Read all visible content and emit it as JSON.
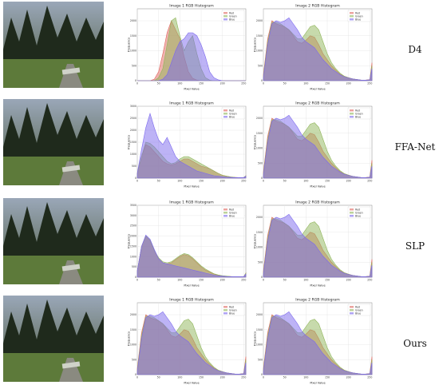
{
  "rows": [
    {
      "method": "D4"
    },
    {
      "method": "FFA-Net"
    },
    {
      "method": "SLP"
    },
    {
      "method": "Ours"
    }
  ],
  "colors": {
    "red": "#e0665f",
    "green": "#8fb55a",
    "blue": "#7b68ee"
  },
  "chart_data": [
    {
      "type": "area",
      "title": "Image 1 RGB Histogram",
      "xlabel": "Pixel Value",
      "ylabel": "Frequency",
      "xlim": [
        0,
        255
      ],
      "ylim": [
        0,
        2400
      ],
      "grid": true,
      "legend": "top-right",
      "x": [
        0,
        10,
        20,
        30,
        40,
        50,
        60,
        70,
        80,
        90,
        100,
        110,
        120,
        130,
        140,
        150,
        160,
        170,
        180,
        190,
        200,
        210,
        220,
        230,
        240,
        250,
        255
      ],
      "series": [
        {
          "name": "Red",
          "values": [
            0,
            0,
            0,
            0,
            50,
            300,
            900,
            1600,
            2000,
            1700,
            1400,
            800,
            300,
            80,
            20,
            0,
            0,
            0,
            0,
            0,
            0,
            0,
            0,
            0,
            0,
            0,
            0
          ]
        },
        {
          "name": "Green",
          "values": [
            0,
            0,
            0,
            0,
            0,
            100,
            400,
            1200,
            2000,
            2100,
            1500,
            1000,
            1300,
            1500,
            900,
            400,
            100,
            20,
            0,
            0,
            0,
            0,
            0,
            0,
            0,
            0,
            0
          ]
        },
        {
          "name": "Blue",
          "values": [
            0,
            0,
            0,
            0,
            0,
            0,
            50,
            200,
            600,
            1000,
            1300,
            1400,
            1600,
            1600,
            1500,
            1200,
            800,
            300,
            100,
            30,
            0,
            0,
            0,
            0,
            0,
            0,
            0
          ]
        }
      ]
    },
    {
      "type": "area",
      "title": "Image 2 RGB Histogram",
      "xlabel": "Pixel Value",
      "ylabel": "Frequency",
      "xlim": [
        0,
        255
      ],
      "ylim": [
        0,
        2400
      ],
      "grid": true,
      "legend": "top-right",
      "x": [
        0,
        10,
        20,
        30,
        40,
        50,
        60,
        70,
        80,
        90,
        100,
        110,
        120,
        130,
        140,
        150,
        160,
        170,
        180,
        190,
        200,
        210,
        220,
        230,
        240,
        250,
        255
      ],
      "series": [
        {
          "name": "Red",
          "values": [
            200,
            1400,
            2000,
            1900,
            1850,
            1800,
            1700,
            1500,
            1300,
            1250,
            1350,
            1500,
            1450,
            1200,
            900,
            700,
            500,
            350,
            220,
            150,
            100,
            60,
            40,
            20,
            20,
            40,
            600
          ]
        },
        {
          "name": "Green",
          "values": [
            150,
            1300,
            1950,
            1950,
            1900,
            1800,
            1700,
            1550,
            1400,
            1400,
            1600,
            1800,
            1850,
            1700,
            1300,
            900,
            600,
            400,
            250,
            150,
            100,
            60,
            40,
            20,
            20,
            30,
            500
          ]
        },
        {
          "name": "Blue",
          "values": [
            100,
            1200,
            1900,
            2000,
            1950,
            2000,
            2100,
            1900,
            1700,
            1450,
            1300,
            1200,
            1100,
            900,
            700,
            550,
            400,
            300,
            200,
            130,
            90,
            60,
            40,
            20,
            20,
            30,
            400
          ]
        }
      ]
    },
    {
      "type": "area",
      "title": "Image 1 RGB Histogram",
      "xlabel": "Pixel Value",
      "ylabel": "Frequency",
      "xlim": [
        0,
        255
      ],
      "ylim": [
        0,
        3000
      ],
      "grid": true,
      "legend": "top-right",
      "x": [
        0,
        10,
        20,
        30,
        40,
        50,
        60,
        70,
        80,
        90,
        100,
        110,
        120,
        130,
        140,
        150,
        160,
        170,
        180,
        190,
        200,
        210,
        220,
        230,
        240,
        250,
        255
      ],
      "series": [
        {
          "name": "Red",
          "values": [
            200,
            900,
            1400,
            1300,
            1100,
            900,
            700,
            600,
            550,
            600,
            700,
            800,
            800,
            700,
            600,
            500,
            450,
            400,
            300,
            200,
            120,
            80,
            50,
            30,
            20,
            20,
            100
          ]
        },
        {
          "name": "Green",
          "values": [
            200,
            900,
            1500,
            1450,
            1300,
            1100,
            900,
            700,
            600,
            650,
            800,
            900,
            900,
            800,
            700,
            600,
            500,
            400,
            300,
            200,
            120,
            80,
            50,
            30,
            20,
            20,
            100
          ]
        },
        {
          "name": "Blue",
          "values": [
            200,
            1200,
            2100,
            2700,
            2100,
            1600,
            1400,
            1700,
            1300,
            900,
            700,
            600,
            500,
            400,
            300,
            250,
            200,
            150,
            100,
            80,
            60,
            40,
            30,
            20,
            20,
            20,
            80
          ]
        }
      ]
    },
    {
      "type": "area",
      "title": "Image 2 RGB Histogram",
      "xlabel": "Pixel Value",
      "ylabel": "Frequency",
      "xlim": [
        0,
        255
      ],
      "ylim": [
        0,
        2400
      ],
      "grid": true,
      "legend": "top-right",
      "x": [
        0,
        10,
        20,
        30,
        40,
        50,
        60,
        70,
        80,
        90,
        100,
        110,
        120,
        130,
        140,
        150,
        160,
        170,
        180,
        190,
        200,
        210,
        220,
        230,
        240,
        250,
        255
      ],
      "series": [
        {
          "name": "Red",
          "values": [
            200,
            1400,
            2000,
            1900,
            1850,
            1800,
            1700,
            1500,
            1300,
            1250,
            1350,
            1500,
            1450,
            1200,
            900,
            700,
            500,
            350,
            220,
            150,
            100,
            60,
            40,
            20,
            20,
            40,
            600
          ]
        },
        {
          "name": "Green",
          "values": [
            150,
            1300,
            1950,
            1950,
            1900,
            1800,
            1700,
            1550,
            1400,
            1400,
            1600,
            1800,
            1850,
            1700,
            1300,
            900,
            600,
            400,
            250,
            150,
            100,
            60,
            40,
            20,
            20,
            30,
            500
          ]
        },
        {
          "name": "Blue",
          "values": [
            100,
            1200,
            1900,
            2000,
            1950,
            2000,
            2100,
            1900,
            1700,
            1450,
            1300,
            1200,
            1100,
            900,
            700,
            550,
            400,
            300,
            200,
            130,
            90,
            60,
            40,
            20,
            20,
            30,
            400
          ]
        }
      ]
    },
    {
      "type": "area",
      "title": "Image 1 RGB Histogram",
      "xlabel": "Pixel Value",
      "ylabel": "Frequency",
      "xlim": [
        0,
        255
      ],
      "ylim": [
        0,
        3500
      ],
      "grid": true,
      "legend": "top-right",
      "x": [
        0,
        10,
        20,
        30,
        40,
        50,
        60,
        70,
        80,
        90,
        100,
        110,
        120,
        130,
        140,
        150,
        160,
        170,
        180,
        190,
        200,
        210,
        220,
        230,
        240,
        250,
        255
      ],
      "series": [
        {
          "name": "Red",
          "values": [
            300,
            1500,
            2000,
            1800,
            1300,
            900,
            700,
            650,
            700,
            850,
            1000,
            1100,
            1050,
            900,
            700,
            500,
            350,
            250,
            150,
            100,
            60,
            40,
            30,
            20,
            20,
            20,
            200
          ]
        },
        {
          "name": "Green",
          "values": [
            300,
            1500,
            2000,
            1800,
            1300,
            950,
            750,
            700,
            750,
            900,
            1050,
            1150,
            1100,
            950,
            750,
            550,
            400,
            280,
            170,
            110,
            70,
            50,
            30,
            20,
            20,
            20,
            200
          ]
        },
        {
          "name": "Blue",
          "values": [
            300,
            1500,
            2050,
            1850,
            1350,
            900,
            700,
            650,
            600,
            550,
            500,
            450,
            400,
            350,
            300,
            250,
            200,
            150,
            100,
            70,
            50,
            30,
            20,
            20,
            20,
            20,
            150
          ]
        }
      ]
    },
    {
      "type": "area",
      "title": "Image 2 RGB Histogram",
      "xlabel": "Pixel Value",
      "ylabel": "Frequency",
      "xlim": [
        0,
        255
      ],
      "ylim": [
        0,
        2400
      ],
      "grid": true,
      "legend": "top-right",
      "x": [
        0,
        10,
        20,
        30,
        40,
        50,
        60,
        70,
        80,
        90,
        100,
        110,
        120,
        130,
        140,
        150,
        160,
        170,
        180,
        190,
        200,
        210,
        220,
        230,
        240,
        250,
        255
      ],
      "series": [
        {
          "name": "Red",
          "values": [
            200,
            1400,
            2000,
            1900,
            1850,
            1800,
            1700,
            1500,
            1300,
            1250,
            1350,
            1500,
            1450,
            1200,
            900,
            700,
            500,
            350,
            220,
            150,
            100,
            60,
            40,
            20,
            20,
            40,
            600
          ]
        },
        {
          "name": "Green",
          "values": [
            150,
            1300,
            1950,
            1950,
            1900,
            1800,
            1700,
            1550,
            1400,
            1400,
            1600,
            1800,
            1850,
            1700,
            1300,
            900,
            600,
            400,
            250,
            150,
            100,
            60,
            40,
            20,
            20,
            30,
            500
          ]
        },
        {
          "name": "Blue",
          "values": [
            100,
            1200,
            1900,
            2000,
            1950,
            2000,
            2100,
            1900,
            1700,
            1450,
            1300,
            1200,
            1100,
            900,
            700,
            550,
            400,
            300,
            200,
            130,
            90,
            60,
            40,
            20,
            20,
            30,
            400
          ]
        }
      ]
    },
    {
      "type": "area",
      "title": "Image 1 RGB Histogram",
      "xlabel": "Pixel Value",
      "ylabel": "Frequency",
      "xlim": [
        0,
        255
      ],
      "ylim": [
        0,
        2400
      ],
      "grid": true,
      "legend": "top-right",
      "x": [
        0,
        10,
        20,
        30,
        40,
        50,
        60,
        70,
        80,
        90,
        100,
        110,
        120,
        130,
        140,
        150,
        160,
        170,
        180,
        190,
        200,
        210,
        220,
        230,
        240,
        250,
        255
      ],
      "series": [
        {
          "name": "Red",
          "values": [
            200,
            1400,
            2000,
            1900,
            1850,
            1800,
            1700,
            1500,
            1300,
            1250,
            1350,
            1500,
            1450,
            1200,
            900,
            700,
            500,
            350,
            220,
            150,
            100,
            60,
            40,
            20,
            20,
            40,
            600
          ]
        },
        {
          "name": "Green",
          "values": [
            150,
            1300,
            1950,
            1950,
            1900,
            1800,
            1700,
            1550,
            1400,
            1400,
            1600,
            1800,
            1850,
            1700,
            1300,
            900,
            600,
            400,
            250,
            150,
            100,
            60,
            40,
            20,
            20,
            30,
            500
          ]
        },
        {
          "name": "Blue",
          "values": [
            100,
            1200,
            1900,
            2000,
            1950,
            2000,
            2100,
            1900,
            1700,
            1450,
            1300,
            1200,
            1100,
            900,
            700,
            550,
            400,
            300,
            200,
            130,
            90,
            60,
            40,
            20,
            20,
            30,
            400
          ]
        }
      ]
    },
    {
      "type": "area",
      "title": "Image 2 RGB Histogram",
      "xlabel": "Pixel Value",
      "ylabel": "Frequency",
      "xlim": [
        0,
        255
      ],
      "ylim": [
        0,
        2400
      ],
      "grid": true,
      "legend": "top-right",
      "x": [
        0,
        10,
        20,
        30,
        40,
        50,
        60,
        70,
        80,
        90,
        100,
        110,
        120,
        130,
        140,
        150,
        160,
        170,
        180,
        190,
        200,
        210,
        220,
        230,
        240,
        250,
        255
      ],
      "series": [
        {
          "name": "Red",
          "values": [
            200,
            1400,
            2000,
            1900,
            1850,
            1800,
            1700,
            1500,
            1300,
            1250,
            1350,
            1500,
            1450,
            1200,
            900,
            700,
            500,
            350,
            220,
            150,
            100,
            60,
            40,
            20,
            20,
            40,
            600
          ]
        },
        {
          "name": "Green",
          "values": [
            150,
            1300,
            1950,
            1950,
            1900,
            1800,
            1700,
            1550,
            1400,
            1400,
            1600,
            1800,
            1850,
            1700,
            1300,
            900,
            600,
            400,
            250,
            150,
            100,
            60,
            40,
            20,
            20,
            30,
            500
          ]
        },
        {
          "name": "Blue",
          "values": [
            100,
            1200,
            1900,
            2000,
            1950,
            2000,
            2100,
            1900,
            1700,
            1450,
            1300,
            1200,
            1100,
            900,
            700,
            550,
            400,
            300,
            200,
            130,
            90,
            60,
            40,
            20,
            20,
            30,
            400
          ]
        }
      ]
    }
  ]
}
